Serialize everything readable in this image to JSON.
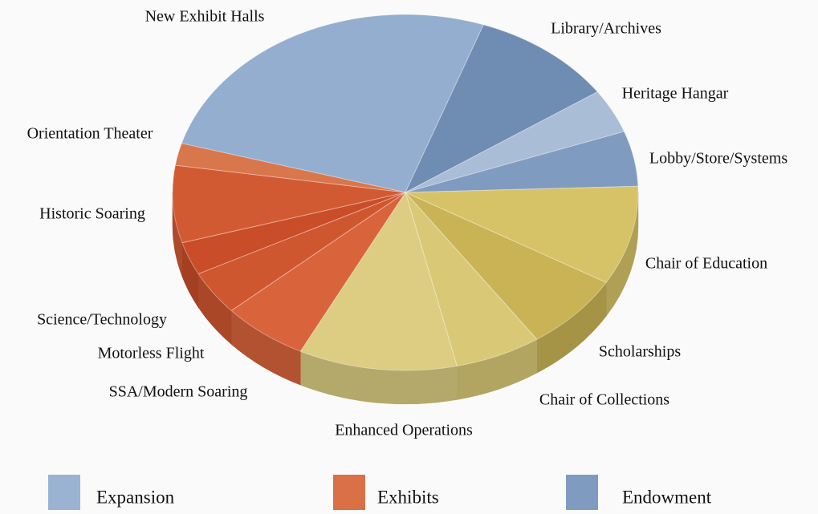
{
  "chart_data": {
    "type": "pie",
    "categories": [
      "New Exhibit Halls",
      "Library/Archives",
      "Heritage Hangar",
      "Lobby/Store/Systems",
      "Chair of Education",
      "Scholarships",
      "Chair of Collections",
      "Enhanced Operations",
      "SSA/Modern Soaring",
      "Motorless Flight",
      "Science/Technology",
      "Historic Soaring",
      "Orientation Theater"
    ],
    "values": [
      26,
      10,
      4,
      5,
      9,
      7,
      6,
      11,
      6,
      4,
      3,
      7,
      2
    ],
    "colors": [
      "#94aed0",
      "#6f8cb3",
      "#a9bdd6",
      "#7f9bc0",
      "#d6c368",
      "#c9b355",
      "#d9c977",
      "#dccd82",
      "#d9643c",
      "#cf5730",
      "#c94d29",
      "#d25a33",
      "#d8764c"
    ],
    "start_angle": 286,
    "legend": [
      {
        "name": "Expansion",
        "color": "#9ab3d3"
      },
      {
        "name": "Exhibits",
        "color": "#d97046"
      },
      {
        "name": "Endowment",
        "color": "#7f9cc0"
      }
    ]
  }
}
